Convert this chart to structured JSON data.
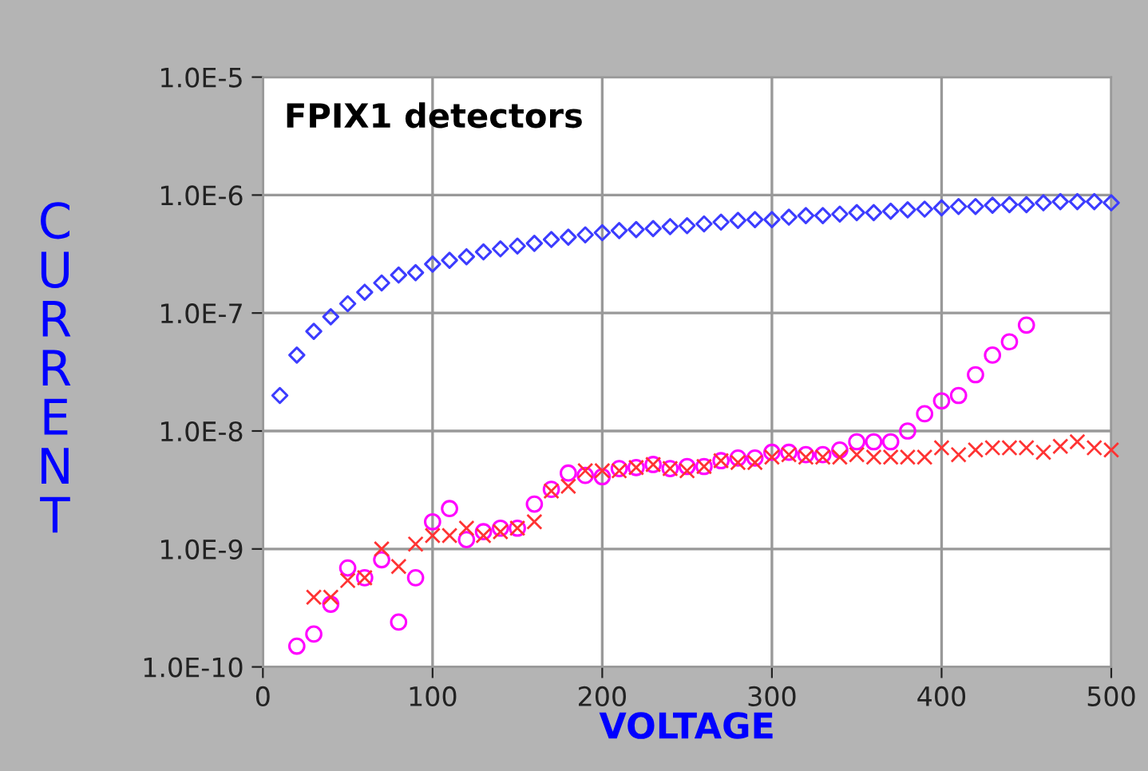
{
  "chart_data": {
    "type": "scatter",
    "title": "FPIX1 detectors",
    "xlabel": "VOLTAGE",
    "ylabel": "CURRENT",
    "log": "y",
    "grid": true,
    "xlim": [
      0,
      500
    ],
    "xticks": [
      0,
      100,
      200,
      300,
      400,
      500
    ],
    "ylim": [
      1e-10,
      1e-05
    ],
    "yticks": [
      {
        "value": 1e-10,
        "label": "1.0E-10"
      },
      {
        "value": 1e-09,
        "label": "1.0E-9"
      },
      {
        "value": 1e-08,
        "label": "1.0E-8"
      },
      {
        "value": 1e-07,
        "label": "1.0E-7"
      },
      {
        "value": 1e-06,
        "label": "1.0E-6"
      },
      {
        "value": 1e-05,
        "label": "1.0E-5"
      }
    ],
    "series": [
      {
        "color": "#3c3cff",
        "marker": "diamond",
        "x": [
          10,
          20,
          30,
          40,
          50,
          60,
          70,
          80,
          90,
          100,
          110,
          120,
          130,
          140,
          150,
          160,
          170,
          180,
          190,
          200,
          210,
          220,
          230,
          240,
          250,
          260,
          270,
          280,
          290,
          300,
          310,
          320,
          330,
          340,
          350,
          360,
          370,
          380,
          390,
          400,
          410,
          420,
          430,
          440,
          450,
          460,
          470,
          480,
          490,
          500
        ],
        "values": [
          2e-08,
          4.4e-08,
          7e-08,
          9.3e-08,
          1.2e-07,
          1.5e-07,
          1.8e-07,
          2.1e-07,
          2.2e-07,
          2.6e-07,
          2.8e-07,
          3e-07,
          3.3e-07,
          3.5e-07,
          3.7e-07,
          3.9e-07,
          4.2e-07,
          4.4e-07,
          4.6e-07,
          4.8e-07,
          5e-07,
          5.1e-07,
          5.2e-07,
          5.4e-07,
          5.5e-07,
          5.7e-07,
          5.9e-07,
          6.1e-07,
          6.2e-07,
          6.2e-07,
          6.5e-07,
          6.7e-07,
          6.7e-07,
          6.9e-07,
          7.1e-07,
          7.1e-07,
          7.3e-07,
          7.5e-07,
          7.6e-07,
          7.8e-07,
          8e-07,
          8e-07,
          8.2e-07,
          8.3e-07,
          8.3e-07,
          8.6e-07,
          8.8e-07,
          8.8e-07,
          8.8e-07,
          8.6e-07
        ]
      },
      {
        "color": "#ff00ff",
        "marker": "circle",
        "x": [
          20,
          30,
          40,
          50,
          60,
          70,
          80,
          90,
          100,
          110,
          120,
          130,
          140,
          150,
          160,
          170,
          180,
          190,
          200,
          210,
          220,
          230,
          240,
          250,
          260,
          270,
          280,
          290,
          300,
          310,
          320,
          330,
          340,
          350,
          360,
          370,
          380,
          390,
          400,
          410,
          420,
          430,
          440,
          450
        ],
        "values": [
          1.5e-10,
          1.9e-10,
          3.4e-10,
          6.9e-10,
          5.7e-10,
          8.1e-10,
          2.4e-10,
          5.7e-10,
          1.7e-09,
          2.2e-09,
          1.2e-09,
          1.4e-09,
          1.5e-09,
          1.5e-09,
          2.4e-09,
          3.2e-09,
          4.4e-09,
          4.2e-09,
          4.1e-09,
          4.8e-09,
          4.9e-09,
          5.2e-09,
          4.8e-09,
          5e-09,
          5e-09,
          5.6e-09,
          5.9e-09,
          5.9e-09,
          6.6e-09,
          6.6e-09,
          6.3e-09,
          6.3e-09,
          6.9e-09,
          8.1e-09,
          8.1e-09,
          8.1e-09,
          1e-08,
          1.4e-08,
          1.8e-08,
          2e-08,
          3e-08,
          4.4e-08,
          5.7e-08,
          7.9e-08
        ]
      },
      {
        "color": "#ff3333",
        "marker": "cross",
        "x": [
          30,
          40,
          50,
          60,
          70,
          80,
          90,
          100,
          110,
          120,
          130,
          140,
          150,
          160,
          170,
          180,
          190,
          200,
          210,
          220,
          230,
          240,
          250,
          260,
          270,
          280,
          290,
          300,
          310,
          320,
          330,
          340,
          350,
          360,
          370,
          380,
          390,
          400,
          410,
          420,
          430,
          440,
          450,
          460,
          470,
          480,
          490,
          500
        ],
        "values": [
          3.9e-10,
          3.9e-10,
          5.4e-10,
          5.7e-10,
          1e-09,
          7.1e-10,
          1.1e-09,
          1.3e-09,
          1.3e-09,
          1.5e-09,
          1.3e-09,
          1.4e-09,
          1.5e-09,
          1.7e-09,
          3.1e-09,
          3.4e-09,
          4.6e-09,
          4.6e-09,
          4.6e-09,
          4.9e-09,
          5.2e-09,
          4.8e-09,
          4.6e-09,
          5e-09,
          5.6e-09,
          5.4e-09,
          5.4e-09,
          6e-09,
          6.3e-09,
          6e-09,
          6e-09,
          6e-09,
          6.3e-09,
          6e-09,
          6e-09,
          6e-09,
          6e-09,
          7.2e-09,
          6.3e-09,
          6.9e-09,
          7.2e-09,
          7.2e-09,
          7.2e-09,
          6.6e-09,
          7.4e-09,
          8.1e-09,
          7.2e-09,
          6.9e-09
        ]
      }
    ]
  }
}
